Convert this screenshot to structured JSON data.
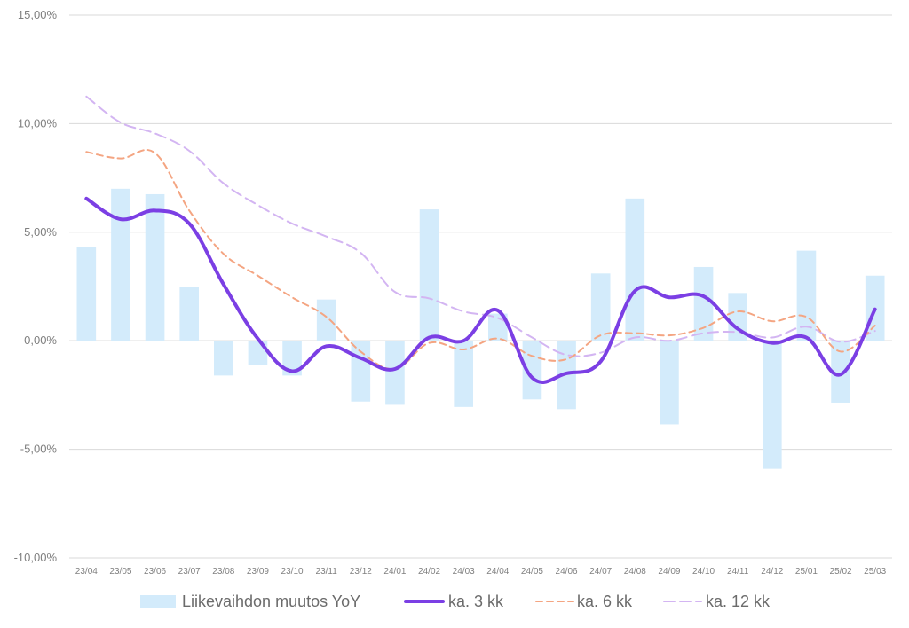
{
  "chart_data": {
    "type": "bar",
    "categories": [
      "23/04",
      "23/05",
      "23/06",
      "23/07",
      "23/08",
      "23/09",
      "23/10",
      "23/11",
      "23/12",
      "24/01",
      "24/02",
      "24/03",
      "24/04",
      "24/05",
      "24/06",
      "24/07",
      "24/08",
      "24/09",
      "24/10",
      "24/11",
      "24/12",
      "25/01",
      "25/02",
      "25/03"
    ],
    "series": [
      {
        "name": "Liikevaihdon muutos YoY",
        "kind": "bar",
        "color": "#d3ebfb",
        "values": [
          4.3,
          7.0,
          6.75,
          2.5,
          -1.6,
          -1.1,
          -1.6,
          1.9,
          -2.8,
          -2.95,
          6.05,
          -3.05,
          1.25,
          -2.7,
          -3.15,
          3.1,
          6.55,
          -3.85,
          3.4,
          2.2,
          -5.9,
          4.15,
          -2.85,
          3.0
        ]
      },
      {
        "name": "ka. 3 kk",
        "kind": "line",
        "style": "solid",
        "color": "#7b3fe4",
        "values": [
          6.55,
          5.6,
          6.0,
          5.4,
          2.6,
          0.1,
          -1.4,
          -0.25,
          -0.8,
          -1.3,
          0.15,
          0.0,
          1.4,
          -1.7,
          -1.5,
          -0.95,
          2.3,
          2.0,
          2.05,
          0.55,
          -0.1,
          0.15,
          -1.55,
          1.45
        ]
      },
      {
        "name": "ka. 6 kk",
        "kind": "line",
        "style": "dashed",
        "color": "#f4a582",
        "values": [
          8.7,
          8.4,
          8.65,
          6.0,
          4.0,
          3.0,
          2.0,
          1.1,
          -0.5,
          -1.3,
          -0.1,
          -0.4,
          0.1,
          -0.7,
          -0.85,
          0.25,
          0.35,
          0.25,
          0.6,
          1.35,
          0.9,
          1.1,
          -0.5,
          0.7
        ]
      },
      {
        "name": "ka. 12 kk",
        "kind": "line",
        "style": "dashed",
        "color": "#d3b5f2",
        "values": [
          11.25,
          10.05,
          9.55,
          8.75,
          7.25,
          6.25,
          5.4,
          4.8,
          4.05,
          2.25,
          1.95,
          1.35,
          1.05,
          0.15,
          -0.65,
          -0.55,
          0.15,
          0.0,
          0.35,
          0.4,
          0.15,
          0.65,
          -0.05,
          0.45
        ]
      }
    ],
    "ylim": [
      -10,
      15
    ],
    "yticks": [
      "-10,00%",
      "-5,00%",
      "0,00%",
      "5,00%",
      "10,00%",
      "15,00%"
    ],
    "ytick_values": [
      -10,
      -5,
      0,
      5,
      10,
      15
    ],
    "grid": true,
    "legend_position": "bottom",
    "title": "",
    "xlabel": "",
    "ylabel": ""
  }
}
